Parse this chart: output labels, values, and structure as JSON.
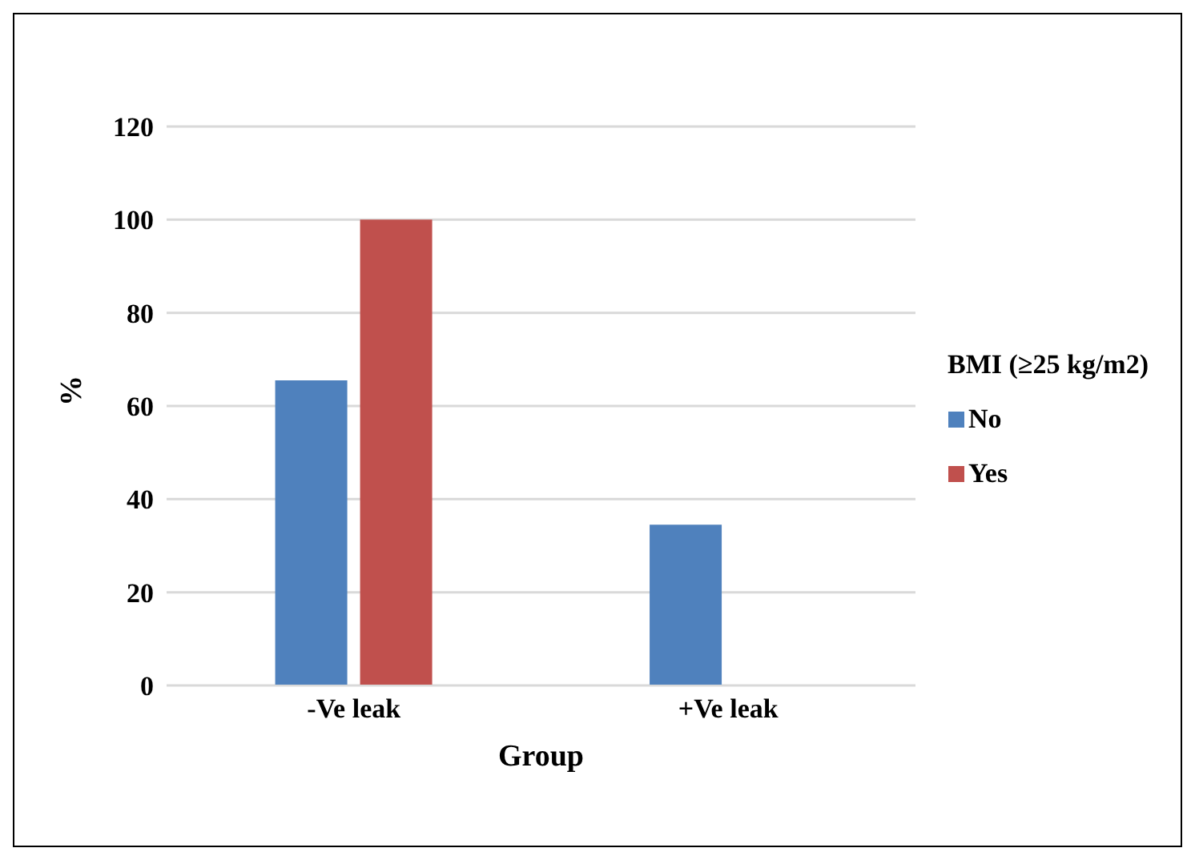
{
  "chart_data": {
    "type": "bar",
    "xlabel": "Group",
    "ylabel": "%",
    "legend_title": "BMI (≥25 kg/m2)",
    "categories": [
      "-Ve leak",
      "+Ve leak"
    ],
    "series": [
      {
        "name": "No",
        "color": "#4f81bd",
        "values": [
          65.5,
          34.5
        ]
      },
      {
        "name": "Yes",
        "color": "#c0504d",
        "values": [
          100,
          0
        ]
      }
    ],
    "ylim": [
      0,
      120
    ],
    "yticks": [
      0,
      20,
      40,
      60,
      80,
      100,
      120
    ],
    "grid": "y",
    "legend": "right"
  }
}
